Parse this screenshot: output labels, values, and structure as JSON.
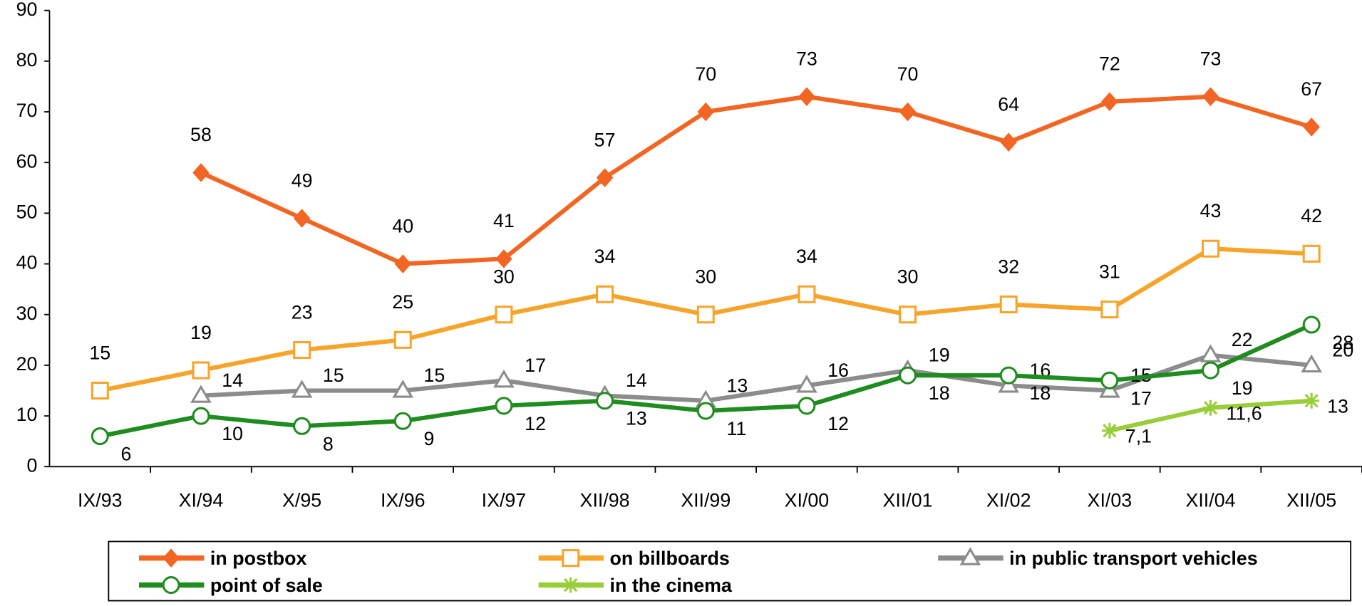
{
  "chart_data": {
    "type": "line",
    "categories": [
      "IX/93",
      "XI/94",
      "X/95",
      "IX/96",
      "IX/97",
      "XII/98",
      "XII/99",
      "XI/00",
      "XII/01",
      "XI/02",
      "XI/03",
      "XII/04",
      "XII/05"
    ],
    "series": [
      {
        "name": "in postbox",
        "color": "#f26522",
        "marker": "diamond",
        "values": [
          null,
          58,
          49,
          40,
          41,
          57,
          70,
          73,
          70,
          64,
          72,
          73,
          67
        ]
      },
      {
        "name": "on billboards",
        "color": "#f7a42b",
        "marker": "square",
        "values": [
          15,
          19,
          23,
          25,
          30,
          34,
          30,
          34,
          30,
          32,
          31,
          43,
          42
        ]
      },
      {
        "name": "in public transport vehicles",
        "color": "#8c8c8c",
        "marker": "triangle",
        "values": [
          null,
          14,
          15,
          15,
          17,
          14,
          13,
          16,
          19,
          16,
          15,
          22,
          20
        ]
      },
      {
        "name": "point of sale",
        "color": "#1e8c1e",
        "marker": "circle",
        "values": [
          6,
          10,
          8,
          9,
          12,
          13,
          11,
          12,
          18,
          18,
          17,
          19,
          28
        ]
      },
      {
        "name": "in the cinema",
        "color": "#9acd3a",
        "marker": "star",
        "values": [
          null,
          null,
          null,
          null,
          null,
          null,
          null,
          null,
          null,
          null,
          7.1,
          11.6,
          13
        ],
        "value_labels": [
          null,
          null,
          null,
          null,
          null,
          null,
          null,
          null,
          null,
          null,
          "7,1",
          "11,6",
          "13"
        ]
      }
    ],
    "ylim": [
      0,
      90
    ],
    "yticks": [
      0,
      10,
      20,
      30,
      40,
      50,
      60,
      70,
      80,
      90
    ],
    "grid": false
  }
}
